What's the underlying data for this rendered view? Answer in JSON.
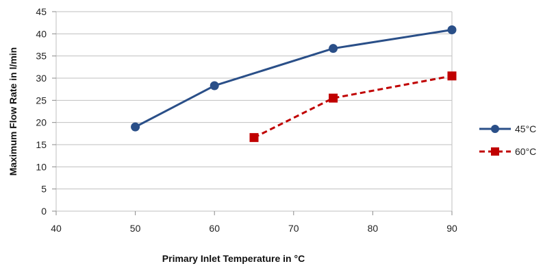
{
  "chart_data": {
    "type": "line",
    "title": "",
    "xlabel": "Primary Inlet Temperature in °C",
    "ylabel": "Maximum Flow Rate in l/min",
    "xlim": [
      40,
      90
    ],
    "ylim": [
      0,
      45
    ],
    "xticks": [
      40,
      50,
      60,
      70,
      80,
      90
    ],
    "yticks": [
      0,
      5,
      10,
      15,
      20,
      25,
      30,
      35,
      40,
      45
    ],
    "grid": "horizontal",
    "legend_position": "right",
    "series": [
      {
        "name": "45°C",
        "color": "#2a4f88",
        "marker": "circle",
        "line_style": "solid",
        "x": [
          50,
          60,
          75,
          90
        ],
        "y": [
          19,
          28.3,
          36.7,
          40.9
        ]
      },
      {
        "name": "60°C",
        "color": "#c00000",
        "marker": "square",
        "line_style": "dashed",
        "x": [
          65,
          75,
          90
        ],
        "y": [
          16.6,
          25.5,
          30.5
        ]
      }
    ]
  }
}
